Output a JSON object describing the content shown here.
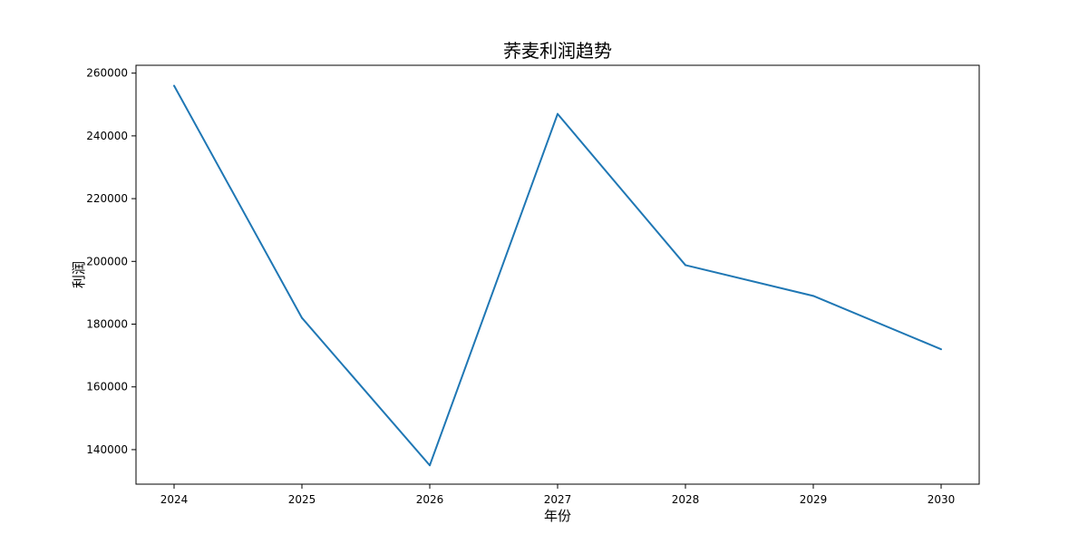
{
  "chart_data": {
    "type": "line",
    "title": "荞麦利润趋势",
    "xlabel": "年份",
    "ylabel": "利润",
    "x": [
      "2024",
      "2025",
      "2026",
      "2027",
      "2028",
      "2029",
      "2030"
    ],
    "series": [
      {
        "values": [
          256000,
          182000,
          135000,
          247000,
          198800,
          189000,
          172000
        ],
        "color": "#1f77b4"
      }
    ],
    "yticks": [
      140000,
      160000,
      180000,
      200000,
      220000,
      240000,
      260000
    ],
    "ylim": [
      129000,
      262500
    ],
    "grid": false,
    "legend": "none"
  }
}
